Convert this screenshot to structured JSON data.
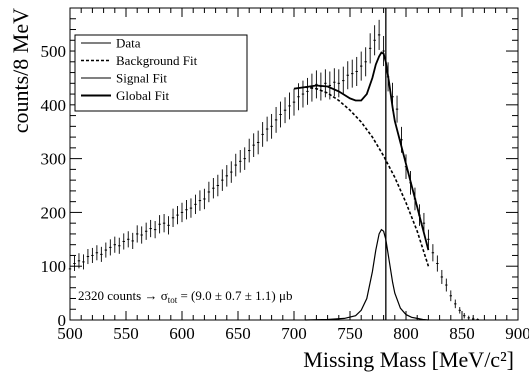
{
  "chart_data": {
    "type": "scatter",
    "xlabel": "Missing Mass [MeV/c²]",
    "ylabel": "counts/8 MeV",
    "xlim": [
      500,
      900
    ],
    "ylim": [
      0,
      580
    ],
    "x_ticks": [
      "500",
      "550",
      "600",
      "650",
      "700",
      "750",
      "800",
      "850",
      "900"
    ],
    "y_ticks": [
      "0",
      "100",
      "200",
      "300",
      "400",
      "500"
    ],
    "vertical_line_x": 782,
    "legend": [
      {
        "label": "Data",
        "style": "thin"
      },
      {
        "label": "Background Fit",
        "style": "dashed"
      },
      {
        "label": "Signal Fit",
        "style": "thin"
      },
      {
        "label": "Global Fit",
        "style": "thick"
      }
    ],
    "annotation": {
      "prefix": "2320 counts → σ",
      "subscript": "tot",
      "suffix": " = (9.0 ± 0.7 ± 1.1) μb"
    },
    "series": [
      {
        "name": "Data",
        "x": [
          500,
          504,
          508,
          512,
          516,
          520,
          524,
          528,
          532,
          536,
          540,
          544,
          548,
          552,
          556,
          560,
          564,
          568,
          572,
          576,
          580,
          584,
          588,
          592,
          596,
          600,
          604,
          608,
          612,
          616,
          620,
          624,
          628,
          632,
          636,
          640,
          644,
          648,
          652,
          656,
          660,
          664,
          668,
          672,
          676,
          680,
          684,
          688,
          692,
          696,
          700,
          704,
          708,
          712,
          716,
          720,
          724,
          728,
          732,
          736,
          740,
          744,
          748,
          752,
          756,
          760,
          764,
          768,
          772,
          776,
          780,
          784,
          788,
          792,
          796,
          800,
          804,
          808,
          812,
          816,
          820,
          824,
          828,
          832,
          836,
          840,
          844,
          848,
          852,
          856,
          860,
          864
        ],
        "y": [
          95,
          105,
          110,
          108,
          118,
          120,
          125,
          122,
          130,
          135,
          140,
          138,
          146,
          150,
          147,
          160,
          158,
          165,
          170,
          168,
          178,
          180,
          176,
          190,
          195,
          200,
          205,
          208,
          215,
          222,
          225,
          238,
          245,
          250,
          260,
          268,
          275,
          288,
          295,
          300,
          315,
          325,
          330,
          345,
          355,
          360,
          372,
          382,
          390,
          398,
          405,
          415,
          420,
          425,
          432,
          438,
          434,
          440,
          436,
          442,
          440,
          445,
          455,
          458,
          462,
          472,
          480,
          505,
          520,
          530,
          500,
          452,
          415,
          392,
          335,
          285,
          255,
          225,
          195,
          180,
          150,
          125,
          105,
          80,
          65,
          45,
          30,
          18,
          8,
          4,
          2,
          1
        ],
        "err": [
          14,
          14,
          14,
          14,
          14,
          14,
          14,
          14,
          14,
          15,
          15,
          15,
          15,
          15,
          15,
          16,
          16,
          16,
          16,
          16,
          17,
          17,
          17,
          17,
          17,
          18,
          18,
          18,
          18,
          19,
          19,
          19,
          19,
          20,
          20,
          20,
          20,
          21,
          21,
          21,
          22,
          22,
          22,
          23,
          23,
          23,
          24,
          24,
          24,
          25,
          25,
          25,
          25,
          25,
          26,
          26,
          26,
          26,
          26,
          26,
          26,
          26,
          26,
          26,
          27,
          27,
          27,
          28,
          28,
          28,
          28,
          27,
          26,
          25,
          24,
          23,
          22,
          21,
          20,
          19,
          18,
          16,
          15,
          13,
          12,
          10,
          8,
          6,
          5,
          4,
          3,
          2
        ]
      },
      {
        "name": "Background Fit",
        "x": [
          710,
          720,
          730,
          740,
          750,
          760,
          770,
          780,
          790,
          800,
          810,
          820
        ],
        "y": [
          433,
          430,
          422,
          408,
          390,
          368,
          340,
          305,
          265,
          218,
          165,
          100
        ]
      },
      {
        "name": "Signal Fit",
        "x": [
          710,
          730,
          745,
          755,
          760,
          765,
          770,
          773,
          776,
          778,
          780,
          782,
          785,
          788,
          790,
          795,
          800,
          805,
          810,
          815,
          820
        ],
        "y": [
          0,
          1,
          3,
          8,
          18,
          40,
          90,
          130,
          160,
          168,
          165,
          150,
          110,
          70,
          50,
          22,
          10,
          5,
          3,
          1,
          0
        ]
      },
      {
        "name": "Global Fit",
        "x": [
          700,
          710,
          720,
          730,
          740,
          750,
          755,
          760,
          765,
          770,
          773,
          776,
          778,
          780,
          782,
          785,
          788,
          790,
          795,
          800,
          805,
          810,
          815,
          820
        ],
        "y": [
          430,
          433,
          436,
          434,
          425,
          412,
          408,
          408,
          420,
          450,
          475,
          490,
          497,
          495,
          480,
          440,
          395,
          370,
          330,
          290,
          250,
          210,
          170,
          130
        ]
      }
    ]
  }
}
